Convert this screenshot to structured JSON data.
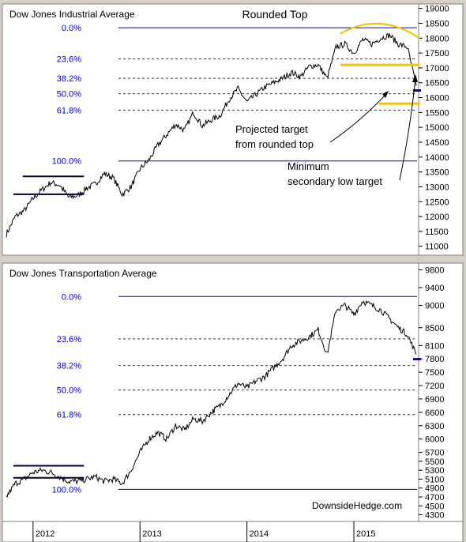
{
  "chart_data": [
    {
      "type": "line",
      "title": "Dow Jones Industrial Average",
      "annotation_title": "Rounded Top",
      "yaxis_ticks": [
        19000,
        18500,
        18000,
        17500,
        17000,
        16500,
        16000,
        15500,
        15000,
        14500,
        14000,
        13500,
        13000,
        12500,
        12000,
        11500,
        11000
      ],
      "ylim": [
        10700,
        19150
      ],
      "fib_levels": [
        {
          "label": "0.0%",
          "value": 18350
        },
        {
          "label": "23.6%",
          "value": 17300
        },
        {
          "label": "38.2%",
          "value": 16650
        },
        {
          "label": "50.0%",
          "value": 16130
        },
        {
          "label": "61.8%",
          "value": 15580
        },
        {
          "label": "100.0%",
          "value": 13870
        }
      ],
      "annotations": [
        {
          "text": "Projected target",
          "text2": "from rounded top"
        },
        {
          "text": "Minimum",
          "text2": "secondary low target"
        }
      ],
      "series": [
        {
          "x": [
            "2011-10",
            "2011-11",
            "2011-12",
            "2012-01",
            "2012-02",
            "2012-03",
            "2012-04",
            "2012-05",
            "2012-06",
            "2012-07",
            "2012-08",
            "2012-09",
            "2012-10",
            "2012-11",
            "2012-12",
            "2013-01",
            "2013-02",
            "2013-03",
            "2013-04",
            "2013-05",
            "2013-06",
            "2013-07",
            "2013-08",
            "2013-09",
            "2013-10",
            "2013-11",
            "2013-12",
            "2014-01",
            "2014-02",
            "2014-03",
            "2014-04",
            "2014-05",
            "2014-06",
            "2014-07",
            "2014-08",
            "2014-09",
            "2014-10",
            "2014-11",
            "2014-12",
            "2015-01",
            "2015-02",
            "2015-03",
            "2015-04",
            "2015-05",
            "2015-06",
            "2015-07",
            "2015-08"
          ],
          "values": [
            11400,
            12000,
            12200,
            12600,
            12900,
            13150,
            13050,
            12650,
            12700,
            12950,
            13100,
            13450,
            13300,
            12750,
            13000,
            13600,
            13900,
            14400,
            14750,
            15100,
            14900,
            15500,
            15050,
            15250,
            15400,
            15950,
            16300,
            15850,
            16100,
            16350,
            16500,
            16650,
            16850,
            16700,
            17050,
            17100,
            16650,
            17700,
            17800,
            17500,
            17950,
            17800,
            18000,
            18100,
            17800,
            17700,
            16400
          ]
        }
      ]
    },
    {
      "type": "line",
      "title": "Dow Jones Transportation Average",
      "yaxis_ticks": [
        9800,
        9400,
        9000,
        8500,
        8100,
        7800,
        7500,
        7200,
        6900,
        6600,
        6300,
        6000,
        5700,
        5500,
        5300,
        5100,
        4900,
        4700,
        4500,
        4300
      ],
      "ylim": [
        4150,
        9950
      ],
      "fib_levels": [
        {
          "label": "0.0%",
          "value": 9200
        },
        {
          "label": "23.6%",
          "value": 8250
        },
        {
          "label": "38.2%",
          "value": 7650
        },
        {
          "label": "50.0%",
          "value": 7100
        },
        {
          "label": "61.8%",
          "value": 6550
        },
        {
          "label": "100.0%",
          "value": 4870
        }
      ],
      "series": [
        {
          "x": [
            "2011-10",
            "2011-11",
            "2011-12",
            "2012-01",
            "2012-02",
            "2012-03",
            "2012-04",
            "2012-05",
            "2012-06",
            "2012-07",
            "2012-08",
            "2012-09",
            "2012-10",
            "2012-11",
            "2012-12",
            "2013-01",
            "2013-02",
            "2013-03",
            "2013-04",
            "2013-05",
            "2013-06",
            "2013-07",
            "2013-08",
            "2013-09",
            "2013-10",
            "2013-11",
            "2013-12",
            "2014-01",
            "2014-02",
            "2014-03",
            "2014-04",
            "2014-05",
            "2014-06",
            "2014-07",
            "2014-08",
            "2014-09",
            "2014-10",
            "2014-11",
            "2014-12",
            "2015-01",
            "2015-02",
            "2015-03",
            "2015-04",
            "2015-05",
            "2015-06",
            "2015-07",
            "2015-08"
          ],
          "values": [
            4700,
            5000,
            5100,
            5250,
            5300,
            5250,
            5150,
            5050,
            5050,
            5100,
            5150,
            5050,
            5100,
            5000,
            5300,
            5700,
            6000,
            6150,
            6000,
            6300,
            6200,
            6450,
            6400,
            6600,
            6750,
            7000,
            7250,
            7150,
            7300,
            7400,
            7600,
            7800,
            8100,
            8200,
            8300,
            8450,
            7900,
            8900,
            9000,
            8800,
            9100,
            9000,
            8900,
            8700,
            8500,
            8350,
            7900
          ]
        }
      ]
    }
  ],
  "xaxis": {
    "ticks": [
      {
        "label": "2012",
        "date": "2012-01"
      },
      {
        "label": "2013",
        "date": "2013-01"
      },
      {
        "label": "2014",
        "date": "2014-01"
      },
      {
        "label": "2015",
        "date": "2015-01"
      }
    ]
  },
  "watermark": "DownsideHedge.com",
  "colors": {
    "fib": "#0000cc",
    "annotation_yellow": "#f5c400",
    "price": "#000000"
  }
}
